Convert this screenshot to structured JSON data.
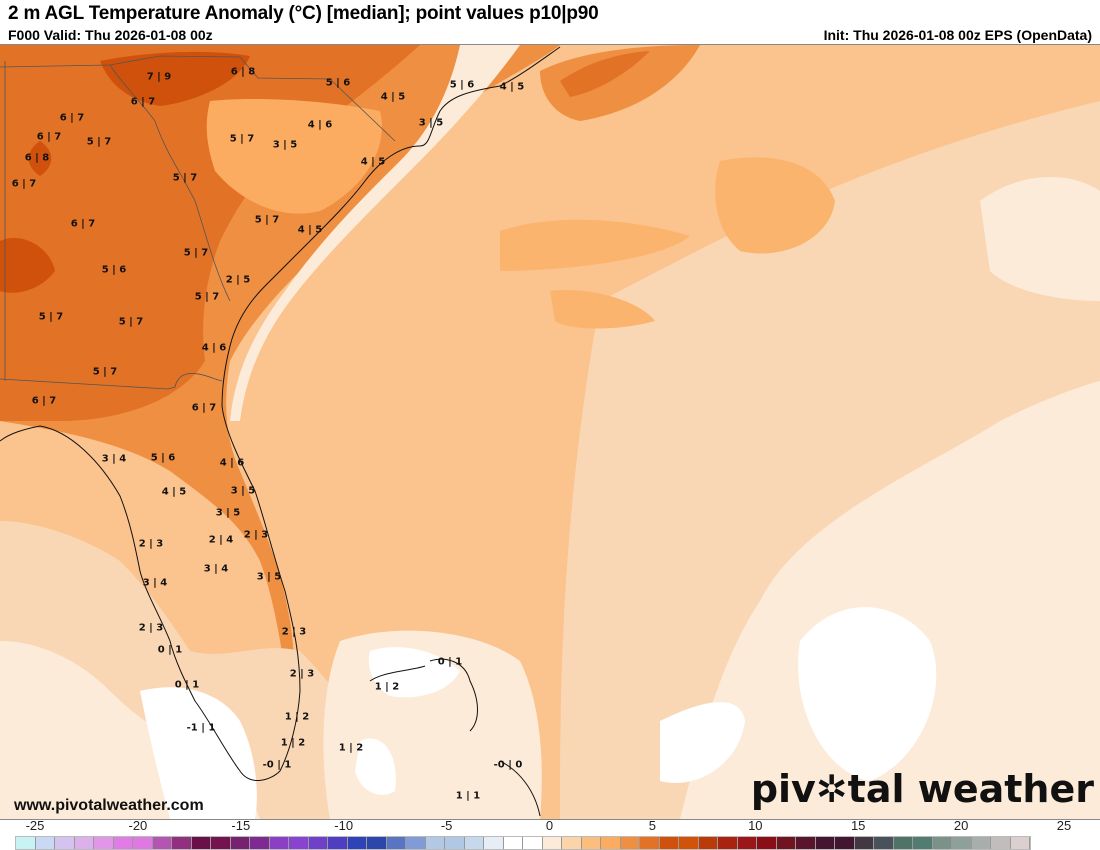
{
  "header": {
    "title": "2 m AGL Temperature Anomaly (°C) [median]; point values p10|p90",
    "valid": "F000 Valid: Thu 2026-01-08 00z",
    "init": "Init: Thu 2026-01-08 00z EPS (OpenData)"
  },
  "footer": {
    "website": "www.pivotalweather.com",
    "brand_pre": "piv",
    "brand_post": "tal weather"
  },
  "colorbar": {
    "tick_labels": [
      "-25",
      "-20",
      "-15",
      "-10",
      "-5",
      "0",
      "5",
      "10",
      "15",
      "20",
      "25"
    ],
    "colors": [
      "#c8f3f5",
      "#c9d9f3",
      "#d4c2ef",
      "#dcb0ea",
      "#e296e8",
      "#e07ce5",
      "#dd79e0",
      "#b355b1",
      "#90307f",
      "#6b0f48",
      "#74144f",
      "#772271",
      "#7d2a91",
      "#8a3fc5",
      "#8843cf",
      "#6f40c8",
      "#4f3ec2",
      "#2e43b5",
      "#2c47ab",
      "#5a74c4",
      "#809bd5",
      "#b2c8e4",
      "#b0c8e4",
      "#c6d8ec",
      "#e6edf7",
      "#ffffff",
      "#ffffff",
      "#fdebd9",
      "#fcd4a9",
      "#fbbe7f",
      "#fbac60",
      "#ef8f42",
      "#e27226",
      "#d0510b",
      "#d15209",
      "#bb3a0a",
      "#aa2310",
      "#9b1618",
      "#8b0e16",
      "#711422",
      "#5a142b",
      "#44152f",
      "#42162e",
      "#413841",
      "#49525a",
      "#507368",
      "#527c72",
      "#7a928a",
      "#8fa09a",
      "#a7aeab",
      "#c2bdbd",
      "#dccfcf"
    ]
  },
  "points": [
    {
      "label": "7|9"
    },
    {
      "label": "6|8"
    },
    {
      "label": "6|7"
    },
    {
      "label": "5|6"
    },
    {
      "label": "4|5"
    },
    {
      "label": "5|6"
    },
    {
      "label": "4|5"
    },
    {
      "label": "6|7"
    },
    {
      "label": "6|7"
    },
    {
      "label": "5|7"
    },
    {
      "label": "5|7"
    },
    {
      "label": "3|5"
    },
    {
      "label": "4|6"
    },
    {
      "label": "3|5"
    },
    {
      "label": "6|8"
    },
    {
      "label": "4|5"
    },
    {
      "label": "6|7"
    },
    {
      "label": "5|7"
    },
    {
      "label": "6|7"
    },
    {
      "label": "5|7"
    },
    {
      "label": "4|5"
    },
    {
      "label": "5|7"
    },
    {
      "label": "5|6"
    },
    {
      "label": "2|5"
    },
    {
      "label": "5|7"
    },
    {
      "label": "5|7"
    },
    {
      "label": "5|7"
    },
    {
      "label": "4|6"
    },
    {
      "label": "5|7"
    },
    {
      "label": "6|7"
    },
    {
      "label": "6|7"
    },
    {
      "label": "3|4"
    },
    {
      "label": "5|6"
    },
    {
      "label": "4|6"
    },
    {
      "label": "4|5"
    },
    {
      "label": "3|5"
    },
    {
      "label": "3|5"
    },
    {
      "label": "2|3"
    },
    {
      "label": "2|4"
    },
    {
      "label": "2|3"
    },
    {
      "label": "3|4"
    },
    {
      "label": "3|5"
    },
    {
      "label": "3|4"
    },
    {
      "label": "2|3"
    },
    {
      "label": "2|3"
    },
    {
      "label": "0|1"
    },
    {
      "label": "0|1"
    },
    {
      "label": "2|3"
    },
    {
      "label": "0|1"
    },
    {
      "label": "1|2"
    },
    {
      "label": "1|2"
    },
    {
      "label": "-1|1"
    },
    {
      "label": "1|2"
    },
    {
      "label": "1|2"
    },
    {
      "label": "-0|1"
    },
    {
      "label": "-0|0"
    },
    {
      "label": "1|1"
    }
  ]
}
